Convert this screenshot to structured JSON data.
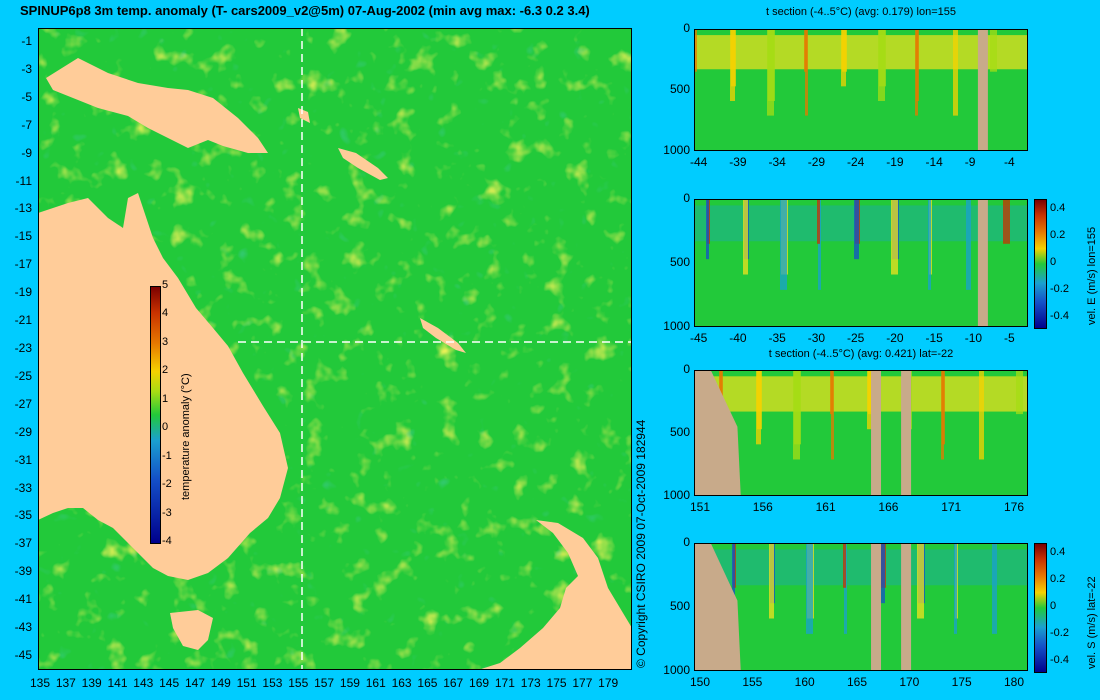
{
  "title": "SPINUP6p8 3m temp. anomaly (T- cars2009_v2@5m) 07-Aug-2002 (min avg max: -6.3 0.2 3.4)",
  "copyright": "© Copyright CSIRO 2009   07-Oct-2009 182944",
  "colors": {
    "background": "#00ccff",
    "land": "#ffcc99",
    "section_land": "#c8aa8a",
    "ocean_mid": "#22c93a",
    "warm": "#f2e11d",
    "cool": "#1aa0d0"
  },
  "map": {
    "lon_ticks": [
      "135",
      "137",
      "139",
      "141",
      "143",
      "145",
      "147",
      "149",
      "151",
      "153",
      "155",
      "157",
      "159",
      "161",
      "163",
      "165",
      "167",
      "169",
      "171",
      "173",
      "175",
      "177",
      "179"
    ],
    "lat_ticks": [
      "-1",
      "-3",
      "-5",
      "-7",
      "-9",
      "-11",
      "-13",
      "-15",
      "-17",
      "-19",
      "-21",
      "-23",
      "-25",
      "-27",
      "-29",
      "-31",
      "-33",
      "-35",
      "-37",
      "-39",
      "-41",
      "-43",
      "-45"
    ],
    "colorbar": {
      "label": "temperature anomaly (°C)",
      "ticks": [
        "5",
        "4",
        "3",
        "2",
        "1",
        "0",
        "-1",
        "-2",
        "-3",
        "-4"
      ]
    },
    "section_lon": 155,
    "section_lat": -22
  },
  "panels": [
    {
      "title": "t section (-4..5°C) (avg: 0.179) lon=155",
      "y_ticks": [
        "0",
        "500",
        "1000"
      ],
      "x_ticks": [
        "-44",
        "-39",
        "-34",
        "-29",
        "-24",
        "-19",
        "-14",
        "-9",
        "-4"
      ]
    },
    {
      "title": "",
      "y_ticks": [
        "0",
        "500",
        "1000"
      ],
      "x_ticks": [
        "-45",
        "-40",
        "-35",
        "-30",
        "-25",
        "-20",
        "-15",
        "-10",
        "-5"
      ],
      "colorbar": {
        "label": "vel. E (m/s) lon=155",
        "ticks": [
          "0.4",
          "0.2",
          "0",
          "-0.2",
          "-0.4"
        ]
      }
    },
    {
      "title": "t section (-4..5°C) (avg: 0.421) lat=-22",
      "y_ticks": [
        "0",
        "500",
        "1000"
      ],
      "x_ticks": [
        "151",
        "156",
        "161",
        "166",
        "171",
        "176"
      ]
    },
    {
      "title": "",
      "y_ticks": [
        "0",
        "500",
        "1000"
      ],
      "x_ticks": [
        "150",
        "155",
        "160",
        "165",
        "170",
        "175",
        "180"
      ],
      "colorbar": {
        "label": "vel. S (m/s) lat=-22",
        "ticks": [
          "0.4",
          "0.2",
          "0",
          "-0.2",
          "-0.4"
        ]
      }
    }
  ]
}
